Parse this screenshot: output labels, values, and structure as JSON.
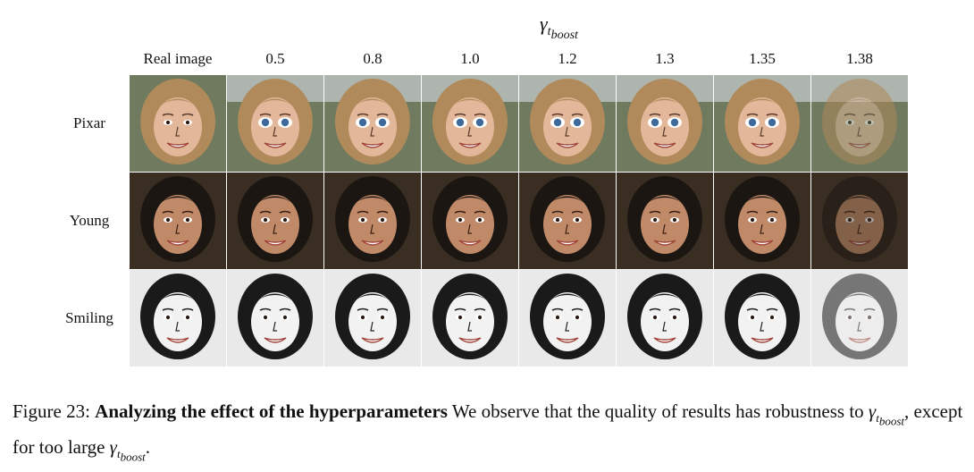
{
  "header": {
    "gamma_symbol": "γ",
    "gamma_subscript": "t",
    "gamma_subsubscript": "boost"
  },
  "columns": [
    "Real image",
    "0.5",
    "0.8",
    "1.0",
    "1.2",
    "1.3",
    "1.35",
    "1.38"
  ],
  "rows": [
    {
      "label": "Pixar",
      "style": "pixar"
    },
    {
      "label": "Young",
      "style": "young"
    },
    {
      "label": "Smiling",
      "style": "sketch"
    }
  ],
  "caption": {
    "prefix": "Figure 23:",
    "bold": "Analyzing the effect of the hyperparameters",
    "text1": "We observe that the quality of results has robustness to",
    "text2": ", except for too large",
    "text3": ".",
    "symbol": "γ",
    "sub_t": "t",
    "sub_boost": "boost"
  },
  "colors": {
    "pixar_bg": "#6f7a5e",
    "pixar_hair": "#b08a5a",
    "pixar_skin": "#e3b89a",
    "young_bg": "#3a2e22",
    "young_hair": "#1c1612",
    "young_skin": "#c08a68",
    "sketch_bg": "#e9e9e9",
    "sketch_hair": "#1a1a1a",
    "sketch_skin": "#f2f2f2"
  }
}
